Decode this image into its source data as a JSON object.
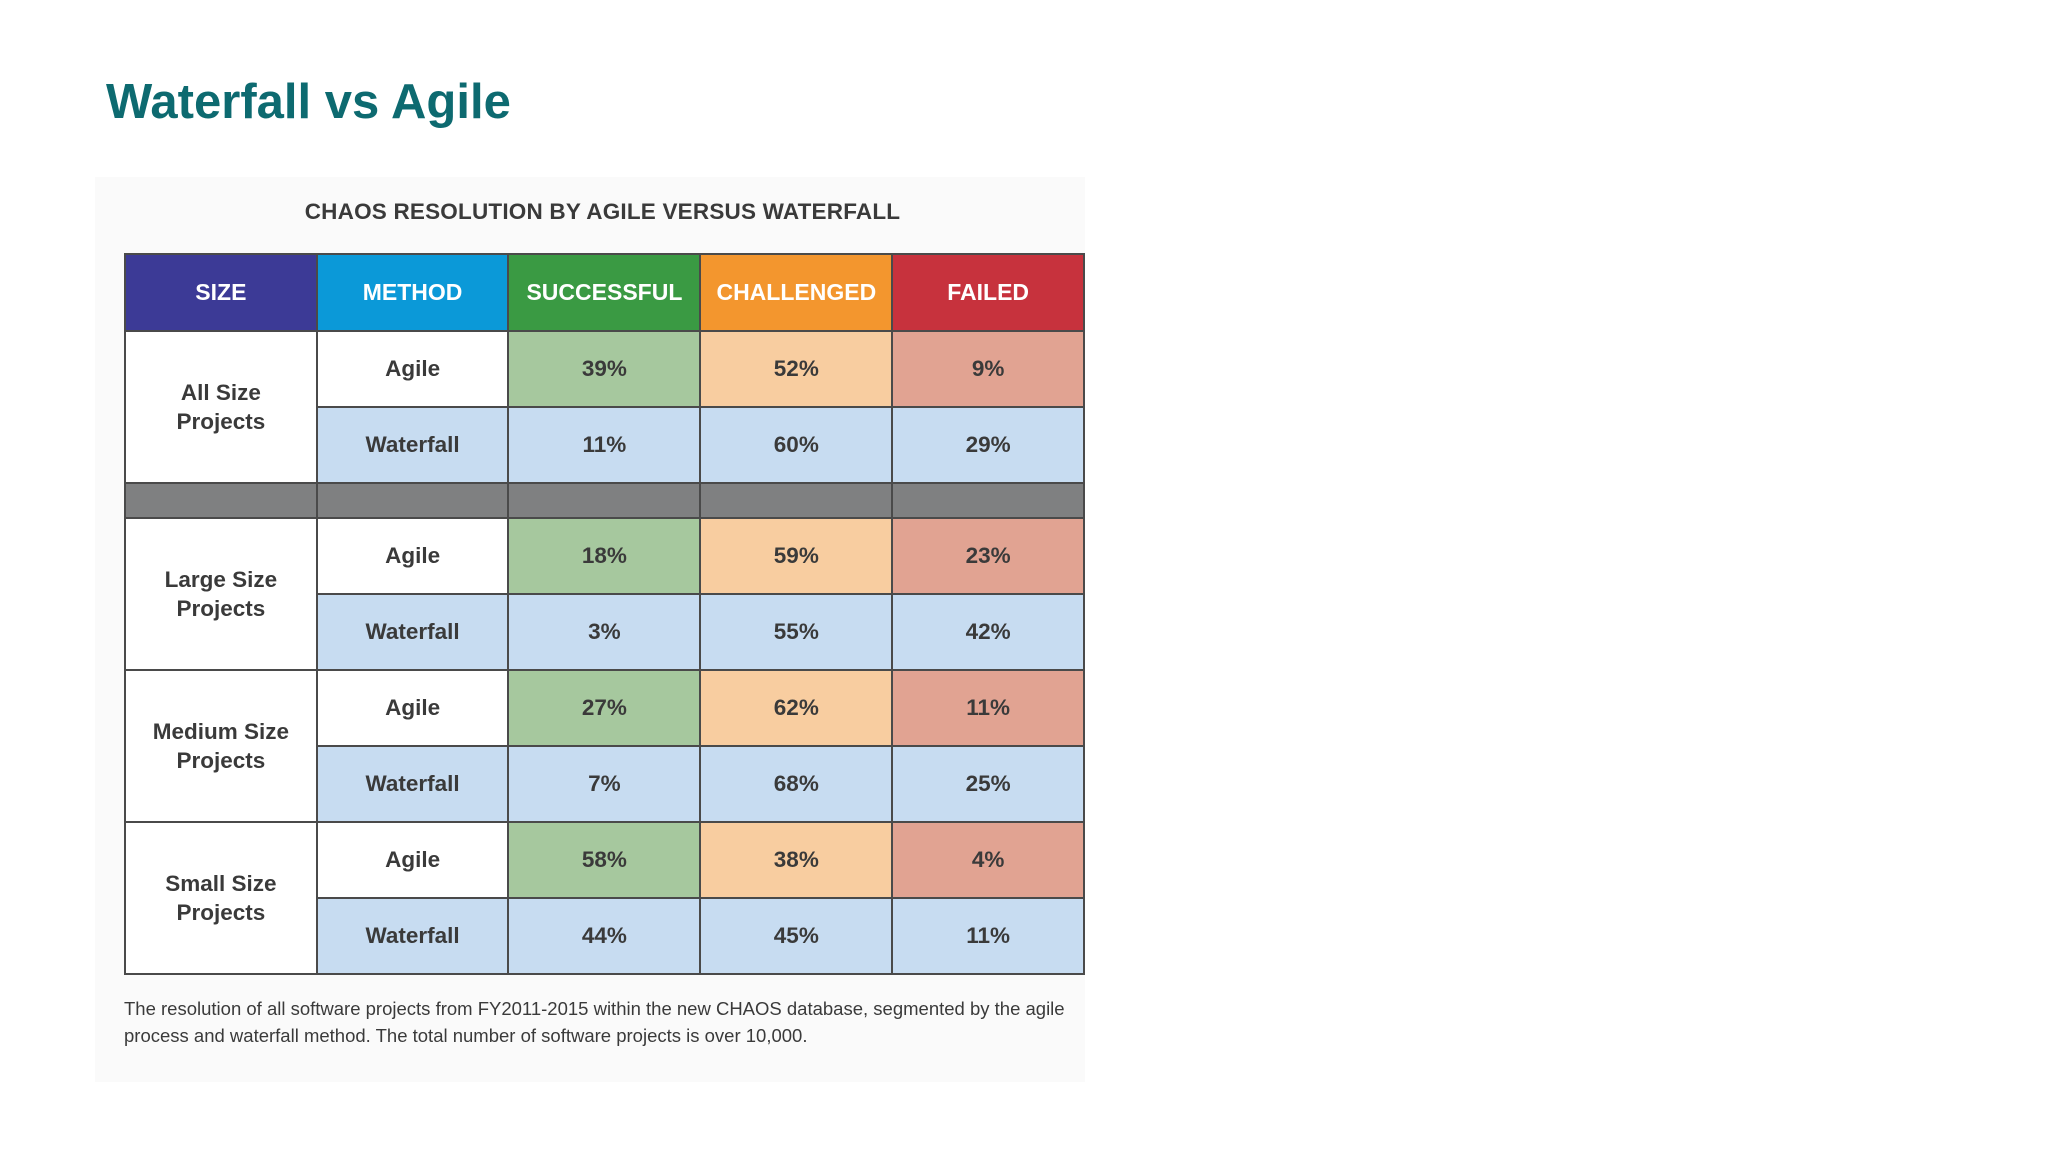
{
  "page": {
    "title": "Waterfall vs Agile"
  },
  "colors": {
    "title": "#0d6a70",
    "size_header": "#3c3a96",
    "method_header": "#0b99d8",
    "successful_header": "#3a9a43",
    "challenged_header": "#f3962e",
    "failed_header": "#c7323d",
    "separator": "#7f8081"
  },
  "chart_data": {
    "type": "table",
    "title": "CHAOS RESOLUTION BY AGILE VERSUS WATERFALL",
    "columns": [
      "SIZE",
      "METHOD",
      "SUCCESSFUL",
      "CHALLENGED",
      "FAILED"
    ],
    "groups": [
      {
        "size": "All Size Projects",
        "size_lines": [
          "All Size",
          "Projects"
        ],
        "rows": [
          {
            "method": "Agile",
            "successful": "39%",
            "challenged": "52%",
            "failed": "9%"
          },
          {
            "method": "Waterfall",
            "successful": "11%",
            "challenged": "60%",
            "failed": "29%"
          }
        ]
      },
      {
        "size": "Large Size Projects",
        "size_lines": [
          "Large Size",
          "Projects"
        ],
        "rows": [
          {
            "method": "Agile",
            "successful": "18%",
            "challenged": "59%",
            "failed": "23%"
          },
          {
            "method": "Waterfall",
            "successful": "3%",
            "challenged": "55%",
            "failed": "42%"
          }
        ]
      },
      {
        "size": "Medium Size Projects",
        "size_lines": [
          "Medium Size",
          "Projects"
        ],
        "rows": [
          {
            "method": "Agile",
            "successful": "27%",
            "challenged": "62%",
            "failed": "11%"
          },
          {
            "method": "Waterfall",
            "successful": "7%",
            "challenged": "68%",
            "failed": "25%"
          }
        ]
      },
      {
        "size": "Small Size Projects",
        "size_lines": [
          "Small Size",
          "Projects"
        ],
        "rows": [
          {
            "method": "Agile",
            "successful": "58%",
            "challenged": "38%",
            "failed": "4%"
          },
          {
            "method": "Waterfall",
            "successful": "44%",
            "challenged": "45%",
            "failed": "11%"
          }
        ]
      }
    ],
    "footnote": "The resolution of all software projects from FY2011-2015 within the new CHAOS database, segmented by the agile process and waterfall method. The total number of software projects is over 10,000."
  }
}
